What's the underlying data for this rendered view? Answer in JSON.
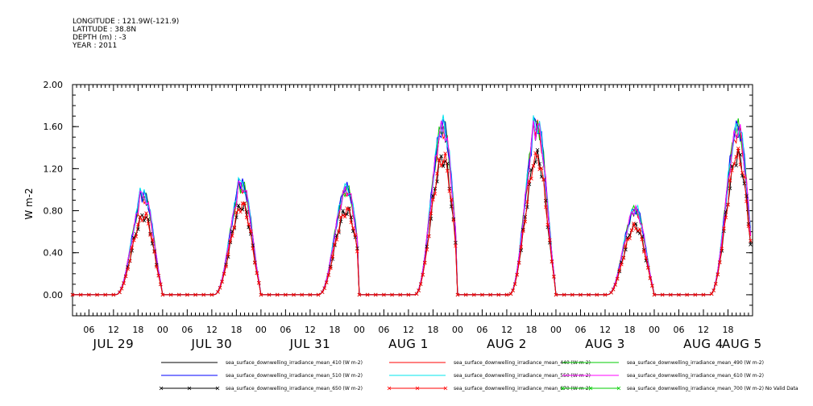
{
  "header": {
    "longitude": "LONGITUDE : 121.9W(-121.9)",
    "latitude": "LATITUDE : 38.8N",
    "depth": "DEPTH (m) : -3",
    "year": "YEAR : 2011"
  },
  "chart_data": {
    "type": "line",
    "title": "",
    "xlabel": "",
    "ylabel": "W m-2",
    "ylim": [
      -0.2,
      2.0
    ],
    "yticks": [
      "0.00",
      "0.40",
      "0.80",
      "1.20",
      "1.60",
      "2.00"
    ],
    "ytick_values": [
      0.0,
      0.4,
      0.8,
      1.2,
      1.6,
      2.0
    ],
    "hour_ticks": [
      "06",
      "12",
      "18",
      "00",
      "06",
      "12",
      "18",
      "00",
      "06",
      "12",
      "18",
      "00",
      "06",
      "12",
      "18",
      "00",
      "06",
      "12",
      "18",
      "00",
      "06",
      "12",
      "18",
      "00",
      "06",
      "12",
      "18",
      "00"
    ],
    "day_labels": [
      "JUL 29",
      "JUL 30",
      "JUL 31",
      "AUG 1",
      "AUG 2",
      "AUG 3",
      "AUG 4",
      "AUG 5"
    ],
    "x_start": "2011-07-29 02:00",
    "x_end": "2011-08-05 00:00",
    "grid": false,
    "legend_placement": "bottom",
    "series": [
      {
        "name": "sea_surface_downwelling_irradiance_mean_410 (W m-2)",
        "color": "#000000",
        "marker": "none"
      },
      {
        "name": "sea_surface_downwelling_irradiance_mean_440 (W m-2)",
        "color": "#ff0000",
        "marker": "none"
      },
      {
        "name": "sea_surface_downwelling_irradiance_mean_490 (W m-2)",
        "color": "#00cc00",
        "marker": "none"
      },
      {
        "name": "sea_surface_downwelling_irradiance_mean_510 (W m-2)",
        "color": "#0000ff",
        "marker": "none"
      },
      {
        "name": "sea_surface_downwelling_irradiance_mean_550 (W m-2)",
        "color": "#00e5ee",
        "marker": "none"
      },
      {
        "name": "sea_surface_downwelling_irradiance_mean_610 (W m-2)",
        "color": "#ff00ff",
        "marker": "none"
      },
      {
        "name": "sea_surface_downwelling_irradiance_mean_650 (W m-2)",
        "color": "#000000",
        "marker": "x"
      },
      {
        "name": "sea_surface_downwelling_irradiance_mean_670 (W m-2)",
        "color": "#ff0000",
        "marker": "x"
      },
      {
        "name": "sea_surface_downwelling_irradiance_mean_700 (W m-2) No Valid Data",
        "color": "#00cc00",
        "marker": "x"
      }
    ],
    "daily_peaks": [
      {
        "day": "JUL 29",
        "peak_hour": 19.5,
        "red": 0.75,
        "cyan": 0.95,
        "spike": 1.08
      },
      {
        "day": "JUL 30",
        "peak_hour": 19.5,
        "red": 0.85,
        "cyan": 1.05,
        "spike": 1.18
      },
      {
        "day": "JUL 31",
        "peak_hour": 21.0,
        "red": 0.8,
        "cyan": 1.02,
        "spike": 1.03
      },
      {
        "day": "AUG 1",
        "peak_hour": 20.5,
        "red": 1.3,
        "cyan": 1.62,
        "spike": 1.62
      },
      {
        "day": "AUG 2",
        "peak_hour": 19.5,
        "red": 1.3,
        "cyan": 1.62,
        "spike": 1.81
      },
      {
        "day": "AUG 3",
        "peak_hour": 19.5,
        "red": 0.65,
        "cyan": 0.82,
        "spike": 0.86
      },
      {
        "day": "AUG 4",
        "peak_hour": 20.5,
        "red": 1.32,
        "cyan": 1.6,
        "spike": 1.6
      }
    ]
  }
}
